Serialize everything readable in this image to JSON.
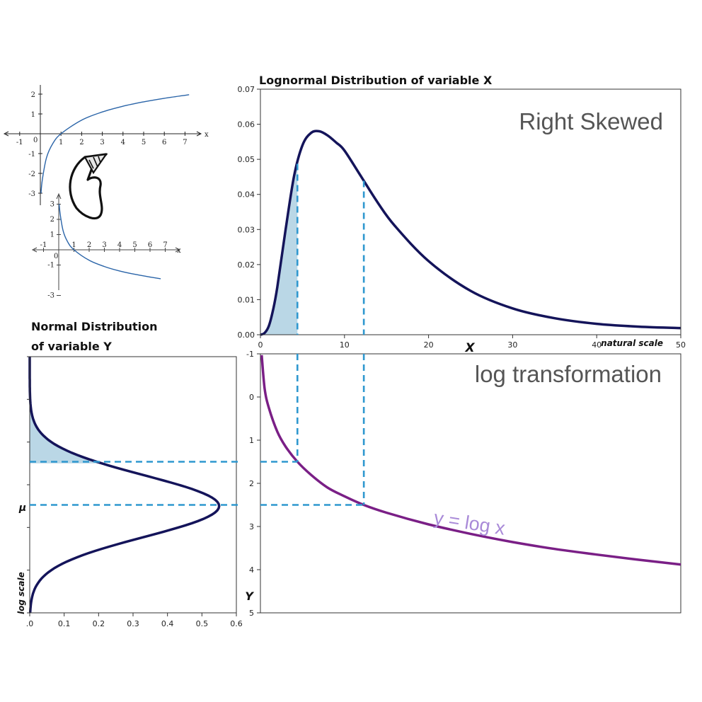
{
  "colors": {
    "density": "#14145a",
    "fill": "#a9cde0",
    "dash": "#2f98cf",
    "logcurve": "#7a1f86",
    "eqn": "#a98ad8",
    "sketch": "#2a64a8"
  },
  "annotations": {
    "right_skewed": "Right Skewed",
    "log_transformation": "log transformation",
    "equation": "y = log x",
    "mu": "μ",
    "log_scale": "log scale",
    "natural_scale": "natural scale"
  },
  "chart_data": [
    {
      "type": "line",
      "title": "Lognormal Distribution of variable X",
      "xlabel": "X",
      "ylabel": "",
      "xlim": [
        0,
        50
      ],
      "ylim": [
        0,
        0.07
      ],
      "x_ticks": [
        "0",
        "10",
        "20",
        "30",
        "40",
        "50"
      ],
      "y_ticks": [
        "0.00",
        "0.01",
        "0.02",
        "0.03",
        "0.04",
        "0.05",
        "0.06",
        "0.07"
      ],
      "series": [
        {
          "x": [
            0.5,
            1,
            1.5,
            2,
            3,
            4,
            5,
            6,
            7,
            8,
            9,
            10,
            12,
            14,
            16,
            20,
            25,
            30,
            35,
            40,
            45,
            50
          ],
          "y": [
            0.0005,
            0.0025,
            0.007,
            0.0135,
            0.03,
            0.0452,
            0.054,
            0.0575,
            0.058,
            0.0568,
            0.0548,
            0.0525,
            0.045,
            0.0375,
            0.031,
            0.021,
            0.0125,
            0.0075,
            0.0047,
            0.0031,
            0.0023,
            0.0019
          ]
        }
      ],
      "shaded_to_x": 4.4,
      "marker_x": [
        4.4,
        12.3
      ]
    },
    {
      "type": "line",
      "title": "",
      "xlabel": "",
      "ylabel": "Y",
      "xlim": [
        0,
        50
      ],
      "ylim": [
        5,
        -1
      ],
      "y_ticks": [
        "-1",
        "0",
        "1",
        "2",
        "3",
        "4",
        "5"
      ],
      "series": [
        {
          "x": [
            0.15,
            0.5,
            1,
            2,
            3,
            4.4,
            6,
            8,
            10,
            12.3,
            15,
            20,
            25,
            30,
            35,
            40,
            45,
            50
          ],
          "y": [
            -0.97,
            -0.2,
            0.25,
            0.8,
            1.15,
            1.5,
            1.8,
            2.1,
            2.3,
            2.5,
            2.68,
            2.95,
            3.17,
            3.36,
            3.52,
            3.65,
            3.77,
            3.88
          ]
        }
      ],
      "marker_y": [
        1.5,
        2.5
      ]
    },
    {
      "type": "line",
      "title": "Normal Distribution of variable Y",
      "xlabel": "",
      "ylabel": "",
      "xlim": [
        0,
        0.6
      ],
      "ylim": [
        5,
        -1
      ],
      "x_ticks": [
        ".0",
        "0.1",
        "0.2",
        "0.3",
        "0.4",
        "0.5",
        "0.6"
      ],
      "mu": 2.5,
      "sigma": 0.72,
      "peak_density": 0.55,
      "shaded_to_y": 1.5,
      "marker_y": [
        1.5,
        2.5
      ]
    },
    {
      "type": "line",
      "title": "",
      "xlim": [
        -1,
        7.5
      ],
      "ylim": [
        -3,
        2
      ],
      "x_ticks": [
        "-1",
        "0",
        "1",
        "2",
        "3",
        "4",
        "5",
        "6",
        "7"
      ],
      "y_ticks": [
        "2",
        "1",
        "-1",
        "-2",
        "-3"
      ],
      "axis_label": "x",
      "series": [
        {
          "x": [
            0.03,
            0.1,
            0.3,
            0.6,
            1,
            2,
            3,
            4,
            5,
            6,
            7.2
          ],
          "y": [
            -3,
            -2.3,
            -1.2,
            -0.5,
            0,
            0.69,
            1.1,
            1.39,
            1.61,
            1.79,
            1.97
          ]
        }
      ]
    },
    {
      "type": "line",
      "title": "",
      "xlim": [
        -1,
        7
      ],
      "ylim": [
        -4,
        3
      ],
      "x_ticks": [
        "-1",
        "0",
        "1",
        "2",
        "3",
        "4",
        "5",
        "6",
        "7"
      ],
      "y_ticks": [
        "3",
        "2",
        "1",
        "-1",
        "-3"
      ],
      "axis_label": "x",
      "series": [
        {
          "x": [
            0.03,
            0.1,
            0.3,
            0.6,
            1,
            2,
            3,
            4,
            5,
            6,
            6.7
          ],
          "y": [
            3,
            2.3,
            1.2,
            0.5,
            0,
            -0.69,
            -1.1,
            -1.39,
            -1.61,
            -1.79,
            -1.9
          ]
        }
      ]
    }
  ]
}
